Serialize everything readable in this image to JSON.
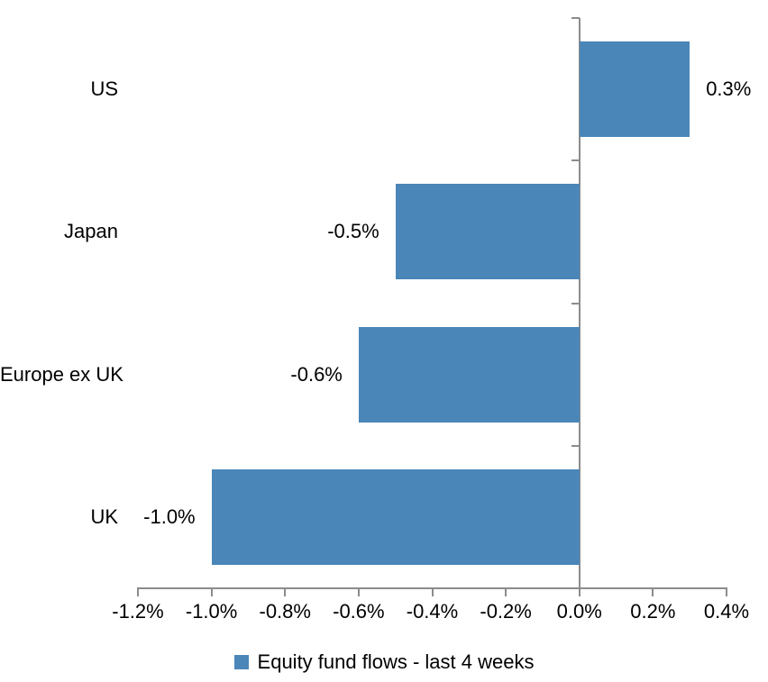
{
  "chart_data": {
    "type": "bar",
    "orientation": "horizontal",
    "title": "",
    "xlabel": "",
    "ylabel": "",
    "categories": [
      "US",
      "Japan",
      "Europe ex UK",
      "UK"
    ],
    "values": [
      0.3,
      -0.5,
      -0.6,
      -1.0
    ],
    "data_labels": [
      "0.3%",
      "-0.5%",
      "-0.6%",
      "-1.0%"
    ],
    "xlim": [
      -1.2,
      0.4
    ],
    "x_ticks": {
      "values": [
        -1.2,
        -1.0,
        -0.8,
        -0.6,
        -0.4,
        -0.2,
        0.0,
        0.2,
        0.4
      ],
      "labels": [
        "-1.2%",
        "-1.0%",
        "-0.8%",
        "-0.6%",
        "-0.4%",
        "-0.2%",
        "0.0%",
        "0.2%",
        "0.4%"
      ]
    },
    "grid": false,
    "legend": {
      "label": "Equity fund flows - last 4 weeks",
      "position": "bottom"
    },
    "bar_color": "#4a86b8",
    "axis_color": "#8c8c8c",
    "text_color": "#000000",
    "background_color": "#ffffff"
  }
}
